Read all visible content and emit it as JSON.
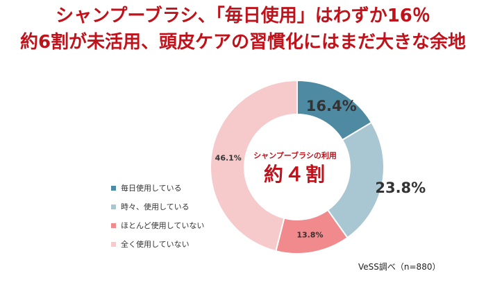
{
  "headline": {
    "line1": "シャンプーブラシ、「毎日使用」はわずか16％",
    "line2": "約6割が未活用、頭皮ケアの習慣化にはまだ大きな余地"
  },
  "center_label": {
    "sub": "シャンプーブラシの利用",
    "main": "約４割"
  },
  "source": "VeSS調べ（n=880）",
  "chart_data": {
    "type": "pie",
    "donut": true,
    "categories": [
      "毎日使用している",
      "時々、使用している",
      "ほとんど使用していない",
      "全く使用していない"
    ],
    "values": [
      16.4,
      23.8,
      13.8,
      46.1
    ],
    "labels": [
      "16.4%",
      "23.8%",
      "13.8%",
      "46.1%"
    ],
    "colors": [
      "#4f8aa3",
      "#a9c6d3",
      "#f08a8c",
      "#f6c9cb"
    ],
    "legend": "left"
  }
}
